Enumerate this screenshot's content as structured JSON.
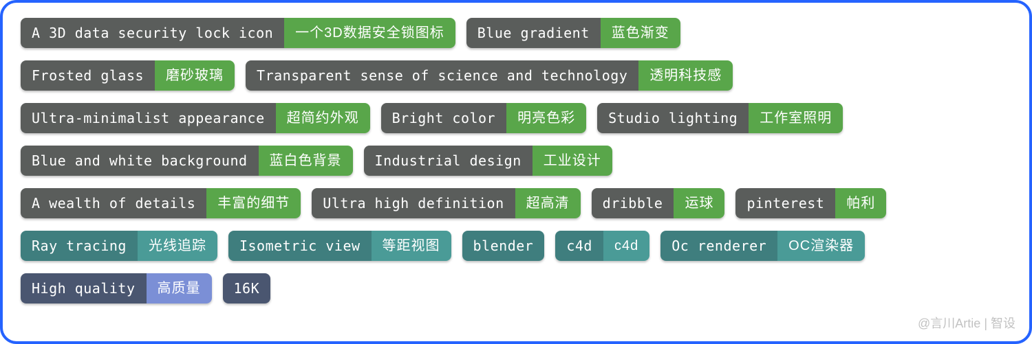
{
  "colors": {
    "gray": {
      "en": "#5a5d5b",
      "zh": "#59a64a"
    },
    "teal": {
      "en": "#3f7e7e",
      "zh": "#4a9b97"
    },
    "slate": {
      "en": "#4a5670",
      "zh": "#7b8fd6"
    }
  },
  "rows": [
    [
      {
        "en": "A 3D data security lock icon",
        "zh": "一个3D数据安全锁图标",
        "palette": "gray"
      },
      {
        "en": "Blue gradient",
        "zh": "蓝色渐变",
        "palette": "gray"
      }
    ],
    [
      {
        "en": "Frosted glass",
        "zh": "磨砂玻璃",
        "palette": "gray"
      },
      {
        "en": "Transparent sense of science and technology",
        "zh": "透明科技感",
        "palette": "gray"
      }
    ],
    [
      {
        "en": "Ultra-minimalist appearance",
        "zh": "超简约外观",
        "palette": "gray"
      },
      {
        "en": "Bright color",
        "zh": "明亮色彩",
        "palette": "gray"
      },
      {
        "en": "Studio lighting",
        "zh": "工作室照明",
        "palette": "gray"
      }
    ],
    [
      {
        "en": "Blue and white background",
        "zh": "蓝白色背景",
        "palette": "gray"
      },
      {
        "en": "Industrial design",
        "zh": "工业设计",
        "palette": "gray"
      }
    ],
    [
      {
        "en": "A wealth of details",
        "zh": "丰富的细节",
        "palette": "gray"
      },
      {
        "en": "Ultra high definition",
        "zh": "超高清",
        "palette": "gray"
      },
      {
        "en": "dribble",
        "zh": "运球",
        "palette": "gray"
      },
      {
        "en": "pinterest",
        "zh": "帕利",
        "palette": "gray"
      }
    ],
    [
      {
        "en": "Ray tracing",
        "zh": "光线追踪",
        "palette": "teal"
      },
      {
        "en": "Isometric view",
        "zh": "等距视图",
        "palette": "teal"
      },
      {
        "en": "blender",
        "zh": "",
        "palette": "teal"
      },
      {
        "en": "c4d",
        "zh": "c4d",
        "palette": "teal"
      },
      {
        "en": "Oc renderer",
        "zh": "OC渲染器",
        "palette": "teal"
      }
    ],
    [
      {
        "en": "High quality",
        "zh": "高质量",
        "palette": "slate"
      },
      {
        "en": "16K",
        "zh": "",
        "palette": "slate"
      }
    ]
  ],
  "watermark": "@言川Artie | 智设"
}
